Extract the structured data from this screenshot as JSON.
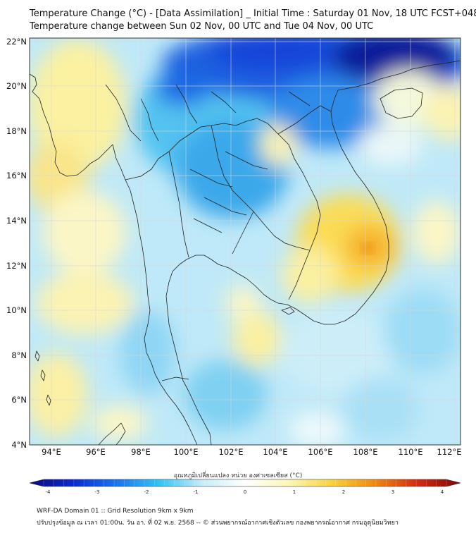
{
  "title_line1": "Temperature Change (°C) - [Data Assimilation] _ Initial Time : Saturday 01 Nov, 18 UTC FCST+048",
  "title_line2": "Temperature change between Sun 02 Nov, 00 UTC and Tue 04 Nov, 00 UTC",
  "lat_labels": [
    "22°N",
    "20°N",
    "18°N",
    "16°N",
    "14°N",
    "12°N",
    "10°N",
    "8°N",
    "6°N",
    "4°N"
  ],
  "lon_labels": [
    "94°E",
    "96°E",
    "98°E",
    "100°E",
    "102°E",
    "104°E",
    "106°E",
    "108°E",
    "110°E",
    "112°E"
  ],
  "colorbar": {
    "title": "อุณหภูมิเปลี่ยนแปลง หน่วย องศาเซลเซียส (°C)",
    "ticks": [
      "-4",
      "-3",
      "-2",
      "-1",
      "0",
      "1",
      "2",
      "3",
      "4"
    ],
    "colors": [
      "#0a0a7a",
      "#0a2ad0",
      "#1a73f0",
      "#2fc4f2",
      "#c6ecf8",
      "#ffffff",
      "#fbf7b8",
      "#f8d33a",
      "#f08a10",
      "#d42a10",
      "#7a0a0a"
    ]
  },
  "footer_line1": "WRF-DA Domain 01 :: Grid Resolution 9km x 9km",
  "footer_line2": "ปรับปรุงข้อมูล ณ เวลา 01:00น. วัน อา. ที่ 02 พ.ย. 2568 -- © ส่วนพยากรณ์อากาศเชิงตัวเลข กองพยากรณ์อากาศ กรมอุตุนิยมวิทยา"
}
